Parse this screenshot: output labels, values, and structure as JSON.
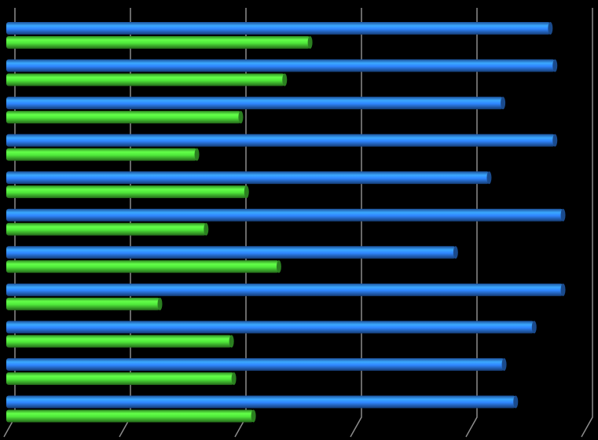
{
  "chart_data": {
    "type": "bar",
    "orientation": "horizontal",
    "categories": [
      null,
      null,
      null,
      null,
      null,
      null,
      null,
      null,
      null,
      null,
      null
    ],
    "series": [
      {
        "color": "#2f86ff",
        "values": [
          4.71,
          4.75,
          4.3,
          4.75,
          4.18,
          4.82,
          3.89,
          4.82,
          4.57,
          4.31,
          4.41
        ]
      },
      {
        "color": "#4fe83a",
        "values": [
          2.63,
          2.41,
          2.03,
          1.65,
          2.08,
          1.73,
          2.36,
          1.33,
          1.95,
          1.97,
          2.14
        ]
      }
    ],
    "xlim": [
      0,
      5
    ],
    "xticks": [
      0,
      1,
      2,
      3,
      4,
      5
    ],
    "grid": true,
    "background": "#000000"
  }
}
